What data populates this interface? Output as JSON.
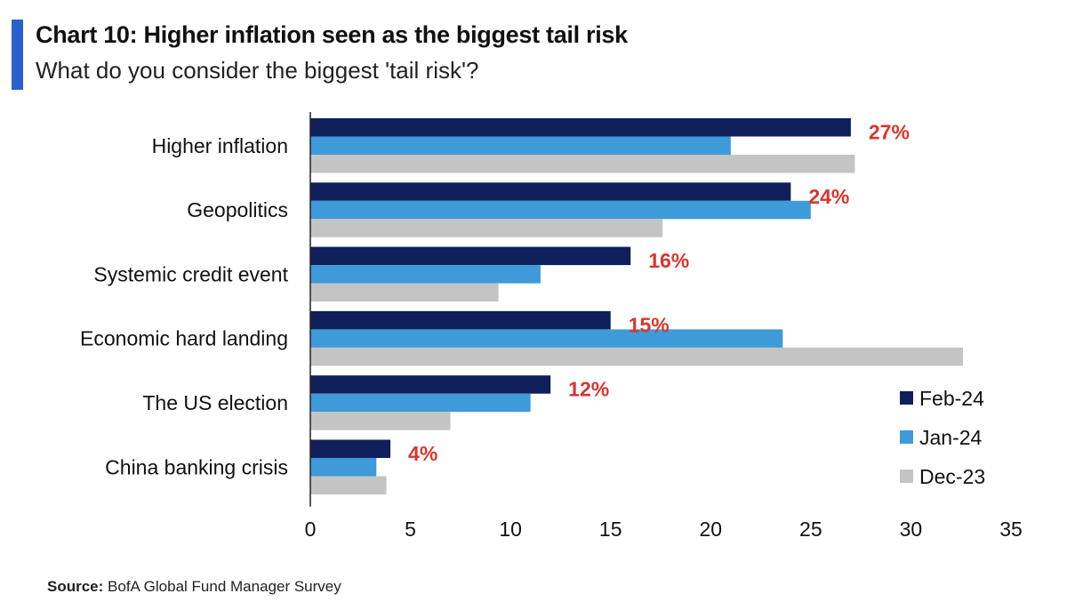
{
  "header": {
    "title": "Chart 10: Higher inflation seen as the biggest tail risk",
    "subtitle": "What do you consider the biggest 'tail risk'?"
  },
  "footer": {
    "source_label": "Source:",
    "source_text": "BofA Global Fund Manager Survey"
  },
  "colors": {
    "accent": "#2b5fd0",
    "label_red": "#d9352b"
  },
  "chart_data": {
    "type": "bar",
    "orientation": "horizontal",
    "title": "Chart 10: Higher inflation seen as the biggest tail risk",
    "subtitle": "What do you consider the biggest 'tail risk'?",
    "categories": [
      "Higher inflation",
      "Geopolitics",
      "Systemic credit event",
      "Economic hard landing",
      "The US election",
      "China banking crisis"
    ],
    "series": [
      {
        "name": "Feb-24",
        "color": "#0f1f5c",
        "values": [
          27,
          24,
          16,
          15,
          12,
          4
        ]
      },
      {
        "name": "Jan-24",
        "color": "#3e9ad8",
        "values": [
          21,
          25,
          11.5,
          23.6,
          11,
          3.3
        ]
      },
      {
        "name": "Dec-23",
        "color": "#c4c4c4",
        "values": [
          27.2,
          17.6,
          9.4,
          32.6,
          7,
          3.8
        ]
      }
    ],
    "data_labels": [
      "27%",
      "24%",
      "16%",
      "15%",
      "12%",
      "4%"
    ],
    "xlim": [
      0,
      35
    ],
    "xticks": [
      "0",
      "5",
      "10",
      "15",
      "20",
      "25",
      "30",
      "35"
    ],
    "grid": false,
    "legend_position": "bottom-right"
  }
}
